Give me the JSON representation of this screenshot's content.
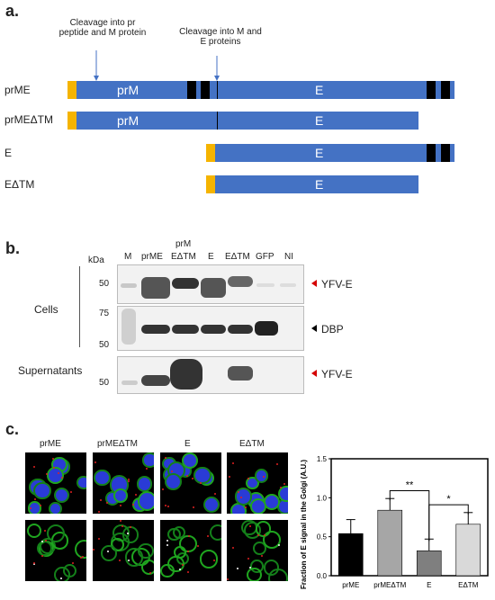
{
  "panel_a": {
    "letter": "a.",
    "annotation_left": "Cleavage into pr peptide and M protein",
    "annotation_right": "Cleavage into M and E proteins",
    "rows": [
      {
        "name": "prME",
        "prm_label": "prM",
        "e_label": "E"
      },
      {
        "name": "prMEΔTM",
        "prm_label": "prM",
        "e_label": "E"
      },
      {
        "name": "E",
        "e_label": "E"
      },
      {
        "name": "EΔTM",
        "e_label": "E"
      }
    ]
  },
  "panel_b": {
    "letter": "b.",
    "kda": "kDa",
    "lanes": [
      "M",
      "prME",
      "prM EΔTM",
      "E",
      "EΔTM",
      "GFP",
      "NI"
    ],
    "lane_prm": "prM",
    "lane_edtm": "EΔTM",
    "cells_label": "Cells",
    "supernatants_label": "Supernatants",
    "blot1": {
      "marker": "50",
      "target": "YFV-E"
    },
    "blot2": {
      "markers": [
        "75",
        "50"
      ],
      "target": "DBP"
    },
    "blot3": {
      "marker": "50",
      "target": "YFV-E"
    },
    "arrow_red": "#d40000"
  },
  "panel_c": {
    "letter": "c.",
    "columns": [
      "prME",
      "prMEΔTM",
      "E",
      "EΔTM"
    ],
    "chart_data": {
      "type": "bar",
      "categories": [
        "prME",
        "prMEΔTM",
        "E",
        "EΔTM"
      ],
      "values": [
        0.54,
        0.84,
        0.32,
        0.66
      ],
      "errors": [
        0.18,
        0.15,
        0.15,
        0.15
      ],
      "colors": [
        "#000000",
        "#a6a6a6",
        "#7f7f7f",
        "#d9d9d9"
      ],
      "ylabel": "Fraction of E signal in the Golgi (A.U.)",
      "ylim": [
        0,
        1.5
      ],
      "yticks": [
        "0.0",
        "0.5",
        "1.0",
        "1.5"
      ],
      "significance": [
        {
          "from": "prMEΔTM",
          "to": "E",
          "label": "**"
        },
        {
          "from": "E",
          "to": "EΔTM",
          "label": "*"
        }
      ]
    }
  }
}
